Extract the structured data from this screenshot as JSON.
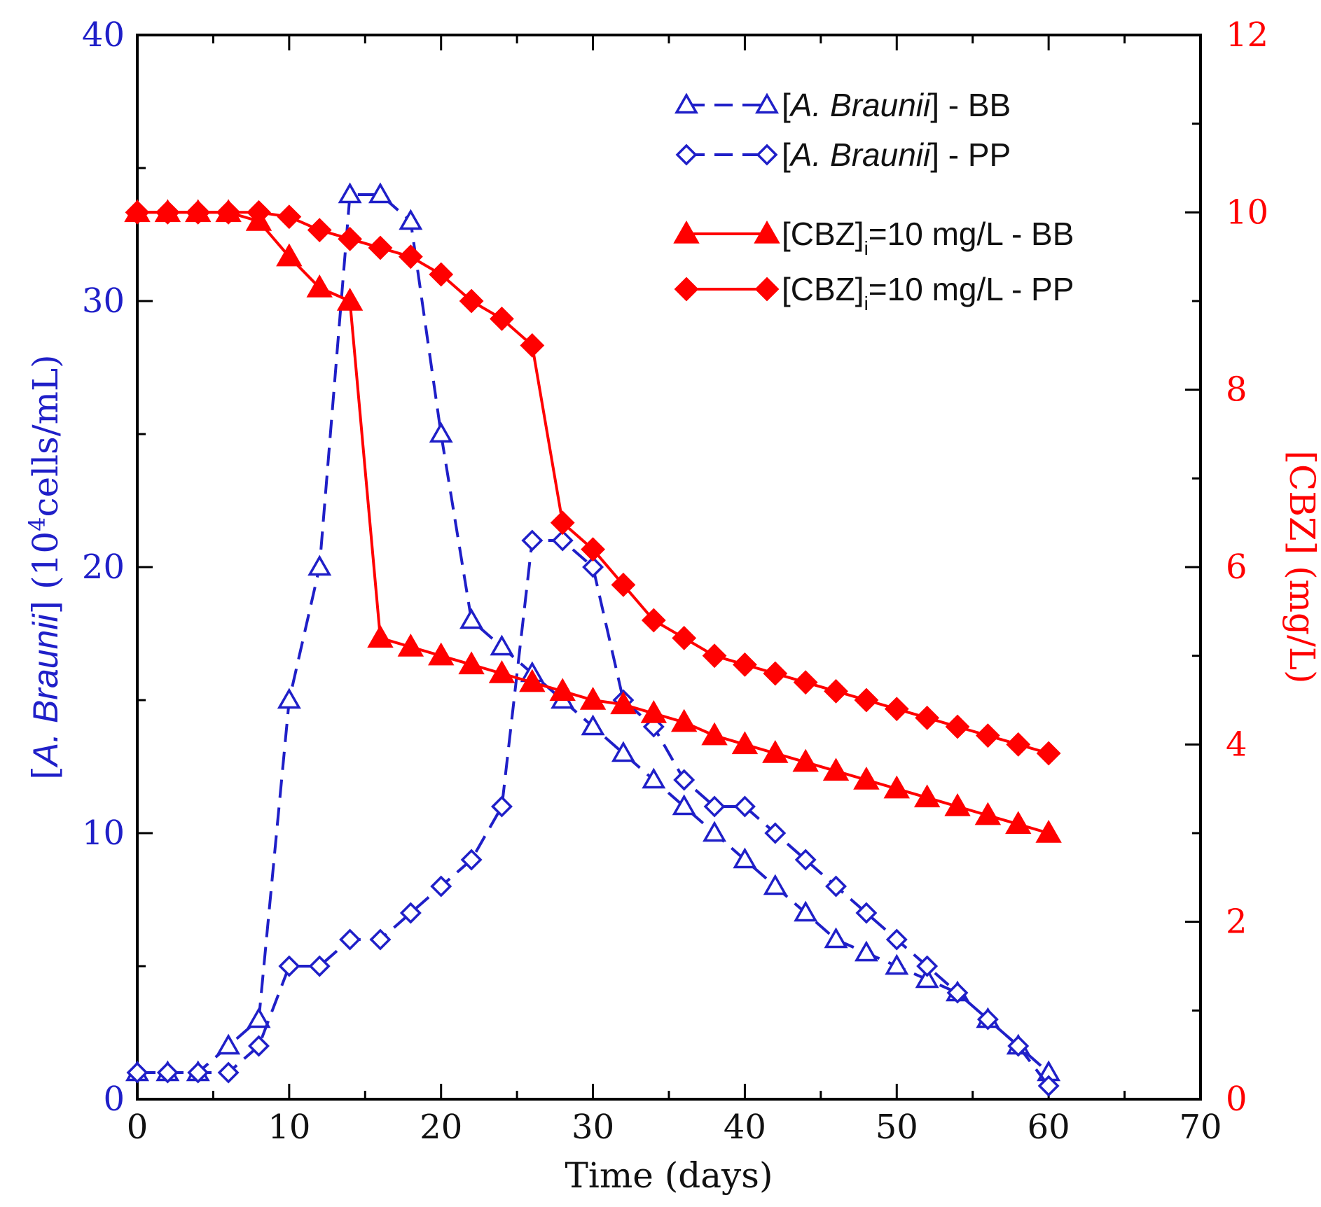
{
  "colors": {
    "blue": "#1f1fc8",
    "red": "#ff0000",
    "frame": "#000000"
  },
  "chart_data": {
    "type": "line",
    "title": "",
    "xlabel": "Time (days)",
    "ylabel_left_parts": [
      "[",
      "A. Braunii",
      "] (10",
      "4",
      "cells/mL)"
    ],
    "ylabel_right": "[CBZ] (mg/L)",
    "xlim": [
      0,
      70
    ],
    "ylim_left": [
      0,
      40
    ],
    "ylim_right": [
      0,
      12
    ],
    "x_ticks": [
      "0",
      "10",
      "20",
      "30",
      "40",
      "50",
      "60",
      "70"
    ],
    "y_left_ticks": [
      "0",
      "10",
      "20",
      "30",
      "40"
    ],
    "y_right_ticks": [
      "0",
      "2",
      "4",
      "6",
      "8",
      "10",
      "12"
    ],
    "grid": false,
    "legend_position": "top-right",
    "series": [
      {
        "name": "[A. Braunii] - BB",
        "legend_parts": [
          "[",
          "A. Braunii",
          "] - BB",
          ""
        ],
        "axis": "left",
        "marker": "triangle-open",
        "style": "dashed",
        "color": "blue",
        "x": [
          0,
          2,
          4,
          6,
          8,
          10,
          12,
          14,
          16,
          18,
          20,
          22,
          24,
          26,
          28,
          30,
          32,
          34,
          36,
          38,
          40,
          42,
          44,
          46,
          48,
          50,
          52,
          54,
          56,
          58,
          60
        ],
        "values": [
          1,
          1,
          1,
          2,
          3,
          15,
          20,
          34,
          34,
          33,
          25,
          18,
          17,
          16,
          15,
          14,
          13,
          12,
          11,
          10,
          9,
          8,
          7,
          6,
          5.5,
          5,
          4.5,
          4,
          3,
          2,
          1
        ]
      },
      {
        "name": "[A. Braunii] - PP",
        "legend_parts": [
          "[",
          "A. Braunii",
          "] - PP",
          ""
        ],
        "axis": "left",
        "marker": "diamond-open",
        "style": "dashed",
        "color": "blue",
        "x": [
          0,
          2,
          4,
          6,
          8,
          10,
          12,
          14,
          16,
          18,
          20,
          22,
          24,
          26,
          28,
          30,
          32,
          34,
          36,
          38,
          40,
          42,
          44,
          46,
          48,
          50,
          52,
          54,
          56,
          58,
          60
        ],
        "values": [
          1,
          1,
          1,
          1,
          2,
          5,
          5,
          6,
          6,
          7,
          8,
          9,
          11,
          21,
          21,
          20,
          15,
          14,
          12,
          11,
          11,
          10,
          9,
          8,
          7,
          6,
          5,
          4,
          3,
          2,
          0.5
        ]
      },
      {
        "name": "[CBZ]i=10 mg/L - BB",
        "legend_parts": [
          "[CBZ]",
          "i",
          "=10 mg/L - BB",
          ""
        ],
        "axis": "right",
        "marker": "triangle-filled",
        "style": "solid",
        "color": "red",
        "x": [
          0,
          2,
          4,
          6,
          8,
          10,
          12,
          14,
          16,
          18,
          20,
          22,
          24,
          26,
          28,
          30,
          32,
          34,
          36,
          38,
          40,
          42,
          44,
          46,
          48,
          50,
          52,
          54,
          56,
          58,
          60
        ],
        "values": [
          10,
          10,
          10,
          10,
          9.9,
          9.5,
          9.15,
          9.0,
          5.2,
          5.1,
          5.0,
          4.9,
          4.8,
          4.7,
          4.6,
          4.5,
          4.45,
          4.35,
          4.25,
          4.1,
          4.0,
          3.9,
          3.8,
          3.7,
          3.6,
          3.5,
          3.4,
          3.3,
          3.2,
          3.1,
          3.0
        ]
      },
      {
        "name": "[CBZ]i=10 mg/L - PP",
        "legend_parts": [
          "[CBZ]",
          "i",
          "=10 mg/L - PP",
          ""
        ],
        "axis": "right",
        "marker": "diamond-filled",
        "style": "solid",
        "color": "red",
        "x": [
          0,
          2,
          4,
          6,
          8,
          10,
          12,
          14,
          16,
          18,
          20,
          22,
          24,
          26,
          28,
          30,
          32,
          34,
          36,
          38,
          40,
          42,
          44,
          46,
          48,
          50,
          52,
          54,
          56,
          58,
          60
        ],
        "values": [
          10,
          10,
          10,
          10,
          10,
          9.95,
          9.8,
          9.7,
          9.6,
          9.5,
          9.3,
          9.0,
          8.8,
          8.5,
          6.5,
          6.2,
          5.8,
          5.4,
          5.2,
          5.0,
          4.9,
          4.8,
          4.7,
          4.6,
          4.5,
          4.4,
          4.3,
          4.2,
          4.1,
          4.0,
          3.9
        ]
      }
    ]
  }
}
